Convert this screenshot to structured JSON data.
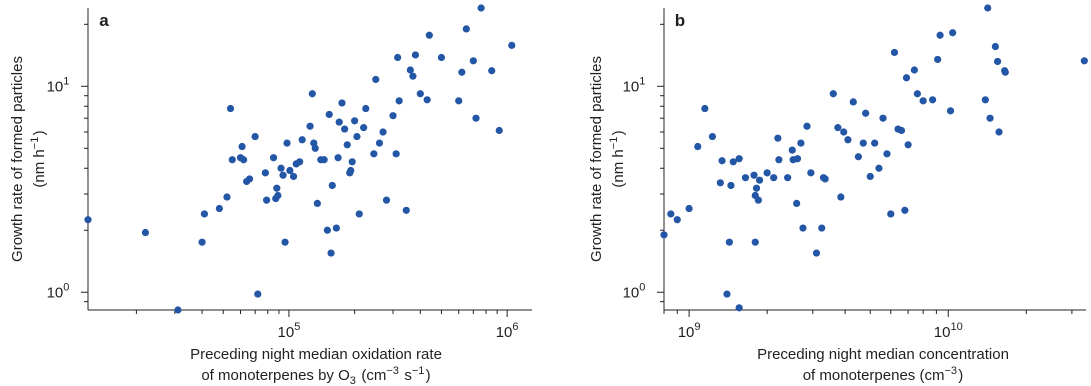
{
  "colors": {
    "point": "#2456a6",
    "axis": "#231f20"
  },
  "chart_data": [
    {
      "type": "scatter",
      "panel_label": "a",
      "xlabel_line1": "Preceding night median oxidation rate",
      "xlabel_line2": "of  monoterpenes by O3 (cm−3 s−1)",
      "ylabel_line1": "Growth rate of formed particles",
      "ylabel_line2": "(nm h−1)",
      "x_scale": "log",
      "y_scale": "log",
      "xlim": [
        12000,
        1300000
      ],
      "ylim": [
        0.82,
        24
      ],
      "x_ticks": [
        {
          "value": 100000,
          "base": "10",
          "exp": "5"
        },
        {
          "value": 1000000,
          "base": "10",
          "exp": "6"
        }
      ],
      "y_ticks": [
        {
          "value": 1,
          "base": "10",
          "exp": "0"
        },
        {
          "value": 10,
          "base": "10",
          "exp": "1"
        }
      ],
      "points": [
        [
          12000,
          2.25
        ],
        [
          22000,
          1.95
        ],
        [
          31000,
          0.82
        ],
        [
          40000,
          1.75
        ],
        [
          41000,
          2.4
        ],
        [
          48000,
          2.55
        ],
        [
          52000,
          2.9
        ],
        [
          54000,
          7.8
        ],
        [
          55000,
          4.4
        ],
        [
          60000,
          4.5
        ],
        [
          61000,
          5.1
        ],
        [
          62000,
          4.4
        ],
        [
          64000,
          3.45
        ],
        [
          66000,
          3.55
        ],
        [
          70000,
          5.7
        ],
        [
          72000,
          0.98
        ],
        [
          78000,
          3.8
        ],
        [
          79000,
          2.8
        ],
        [
          85000,
          4.5
        ],
        [
          87000,
          2.85
        ],
        [
          88000,
          3.2
        ],
        [
          89000,
          2.95
        ],
        [
          92000,
          4.0
        ],
        [
          94000,
          3.7
        ],
        [
          96000,
          1.75
        ],
        [
          98000,
          5.3
        ],
        [
          101000,
          3.9
        ],
        [
          105000,
          3.65
        ],
        [
          108000,
          4.2
        ],
        [
          112000,
          4.3
        ],
        [
          115000,
          5.5
        ],
        [
          125000,
          6.4
        ],
        [
          128000,
          9.2
        ],
        [
          130000,
          5.3
        ],
        [
          132000,
          5.0
        ],
        [
          135000,
          2.7
        ],
        [
          140000,
          4.4
        ],
        [
          145000,
          4.4
        ],
        [
          150000,
          2.0
        ],
        [
          153000,
          7.3
        ],
        [
          156000,
          1.55
        ],
        [
          158000,
          3.3
        ],
        [
          165000,
          2.05
        ],
        [
          168000,
          4.5
        ],
        [
          170000,
          6.7
        ],
        [
          175000,
          8.3
        ],
        [
          180000,
          6.2
        ],
        [
          185000,
          5.2
        ],
        [
          190000,
          3.8
        ],
        [
          192000,
          3.9
        ],
        [
          195000,
          4.3
        ],
        [
          200000,
          6.8
        ],
        [
          205000,
          5.7
        ],
        [
          210000,
          2.4
        ],
        [
          220000,
          6.3
        ],
        [
          225000,
          7.8
        ],
        [
          245000,
          4.7
        ],
        [
          250000,
          10.8
        ],
        [
          260000,
          5.3
        ],
        [
          270000,
          6.0
        ],
        [
          280000,
          2.8
        ],
        [
          300000,
          7.2
        ],
        [
          310000,
          4.7
        ],
        [
          315000,
          13.8
        ],
        [
          320000,
          8.5
        ],
        [
          345000,
          2.5
        ],
        [
          360000,
          12.0
        ],
        [
          370000,
          11.2
        ],
        [
          380000,
          14.2
        ],
        [
          400000,
          9.2
        ],
        [
          430000,
          8.6
        ],
        [
          440000,
          17.7
        ],
        [
          500000,
          13.8
        ],
        [
          600000,
          8.5
        ],
        [
          620000,
          11.7
        ],
        [
          650000,
          19.0
        ],
        [
          700000,
          13.3
        ],
        [
          720000,
          7.0
        ],
        [
          760000,
          24.0
        ],
        [
          850000,
          11.9
        ],
        [
          920000,
          6.1
        ],
        [
          1050000,
          15.8
        ]
      ]
    },
    {
      "type": "scatter",
      "panel_label": "b",
      "xlabel_line1": "Preceding night median concentration",
      "xlabel_line2": "of monoterpenes (cm−3)",
      "ylabel_line1": "Growth rate of formed particles",
      "ylabel_line2": "(nm h−1)",
      "x_scale": "log",
      "y_scale": "log",
      "xlim": [
        800000000,
        34000000000
      ],
      "ylim": [
        0.82,
        24
      ],
      "x_ticks": [
        {
          "value": 1000000000,
          "base": "10",
          "exp": "9"
        },
        {
          "value": 10000000000,
          "base": "10",
          "exp": "10"
        }
      ],
      "y_ticks": [
        {
          "value": 1,
          "base": "10",
          "exp": "0"
        },
        {
          "value": 10,
          "base": "10",
          "exp": "1"
        }
      ],
      "points": [
        [
          800000000,
          1.9
        ],
        [
          850000000,
          2.4
        ],
        [
          900000000,
          2.25
        ],
        [
          1000000000,
          2.55
        ],
        [
          1080000000,
          5.1
        ],
        [
          1150000000,
          7.8
        ],
        [
          1230000000,
          5.7
        ],
        [
          1320000000,
          3.4
        ],
        [
          1340000000,
          4.35
        ],
        [
          1400000000,
          0.98
        ],
        [
          1430000000,
          1.75
        ],
        [
          1450000000,
          3.3
        ],
        [
          1480000000,
          4.3
        ],
        [
          1560000000,
          0.84
        ],
        [
          1560000000,
          4.45
        ],
        [
          1650000000,
          3.6
        ],
        [
          1780000000,
          3.7
        ],
        [
          1800000000,
          1.75
        ],
        [
          1800000000,
          2.95
        ],
        [
          1820000000,
          3.2
        ],
        [
          1850000000,
          2.8
        ],
        [
          1870000000,
          3.5
        ],
        [
          2000000000,
          3.8
        ],
        [
          2120000000,
          3.6
        ],
        [
          2200000000,
          5.6
        ],
        [
          2220000000,
          4.4
        ],
        [
          2400000000,
          3.6
        ],
        [
          2500000000,
          4.9
        ],
        [
          2520000000,
          4.4
        ],
        [
          2600000000,
          2.7
        ],
        [
          2620000000,
          4.45
        ],
        [
          2700000000,
          5.3
        ],
        [
          2750000000,
          2.05
        ],
        [
          2850000000,
          6.4
        ],
        [
          2950000000,
          3.8
        ],
        [
          3100000000,
          1.55
        ],
        [
          3250000000,
          2.05
        ],
        [
          3300000000,
          3.6
        ],
        [
          3350000000,
          3.55
        ],
        [
          3600000000,
          9.2
        ],
        [
          3750000000,
          6.3
        ],
        [
          3850000000,
          2.9
        ],
        [
          3950000000,
          6.0
        ],
        [
          4100000000,
          5.5
        ],
        [
          4300000000,
          8.4
        ],
        [
          4500000000,
          4.55
        ],
        [
          4700000000,
          5.3
        ],
        [
          4800000000,
          7.4
        ],
        [
          5000000000,
          3.65
        ],
        [
          5200000000,
          5.3
        ],
        [
          5400000000,
          4.0
        ],
        [
          5600000000,
          7.0
        ],
        [
          5800000000,
          4.7
        ],
        [
          6000000000,
          2.4
        ],
        [
          6200000000,
          14.6
        ],
        [
          6400000000,
          6.2
        ],
        [
          6600000000,
          6.1
        ],
        [
          6800000000,
          2.5
        ],
        [
          6900000000,
          11.0
        ],
        [
          7000000000,
          5.2
        ],
        [
          7400000000,
          12.0
        ],
        [
          7600000000,
          9.2
        ],
        [
          8000000000,
          8.5
        ],
        [
          8700000000,
          8.6
        ],
        [
          9100000000,
          13.5
        ],
        [
          9300000000,
          17.7
        ],
        [
          10200000000,
          7.6
        ],
        [
          10400000000,
          18.2
        ],
        [
          13900000000,
          8.6
        ],
        [
          14200000000,
          24.0
        ],
        [
          14500000000,
          7.0
        ],
        [
          15200000000,
          15.6
        ],
        [
          15500000000,
          13.2
        ],
        [
          15700000000,
          6.0
        ],
        [
          16500000000,
          11.9
        ],
        [
          16600000000,
          11.7
        ],
        [
          33500000000,
          13.3
        ]
      ]
    }
  ]
}
